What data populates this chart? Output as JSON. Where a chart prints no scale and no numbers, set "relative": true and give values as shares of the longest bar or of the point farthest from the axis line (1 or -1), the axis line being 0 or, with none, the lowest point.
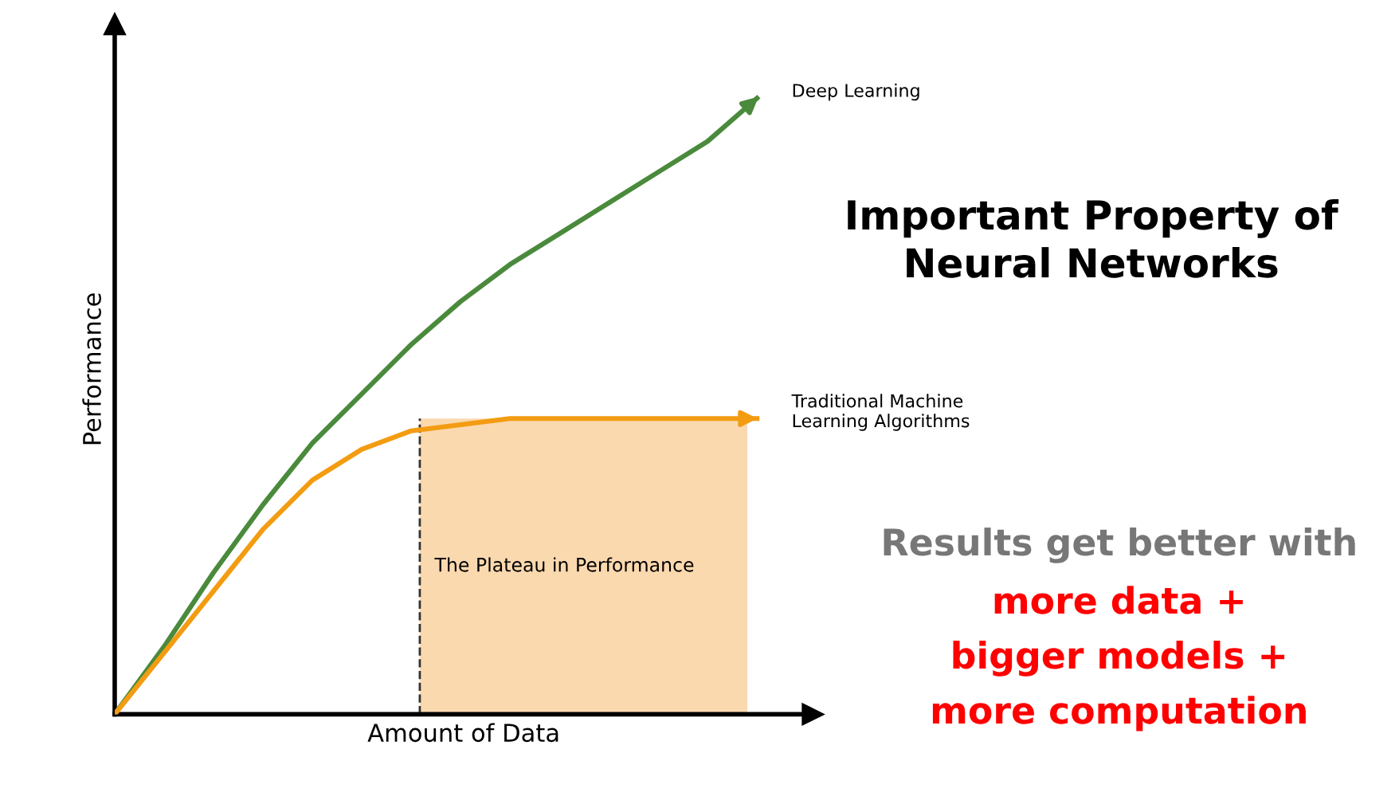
{
  "chart_data": {
    "type": "line",
    "title": "Important Property of Neural Networks",
    "xlabel": "Amount of Data",
    "ylabel": "Performance",
    "categories": [
      null,
      null,
      null,
      null,
      null,
      null,
      null,
      null,
      null,
      null,
      null,
      null,
      null,
      null
    ],
    "relative": true,
    "legend": "right",
    "marker": "none",
    "line_style": "solid",
    "series": [
      {
        "name": "Deep Learning",
        "color": "#4a8a3c",
        "values": [
          0,
          0.11,
          0.23,
          0.34,
          0.44,
          0.52,
          0.6,
          0.67,
          0.73,
          0.78,
          0.83,
          0.88,
          0.93,
          1
        ]
      },
      {
        "name": "Traditional Machine\nLearning Algorithms",
        "color": "#f39c12",
        "values": [
          0,
          0.1,
          0.2,
          0.3,
          0.38,
          0.43,
          0.46,
          0.47,
          0.48,
          0.48,
          0.48,
          0.48,
          0.48,
          0.48
        ]
      }
    ],
    "annotations": [
      "The Plateau in Performance",
      "Results get better with",
      "more data +",
      "bigger models +",
      "more computation"
    ]
  }
}
